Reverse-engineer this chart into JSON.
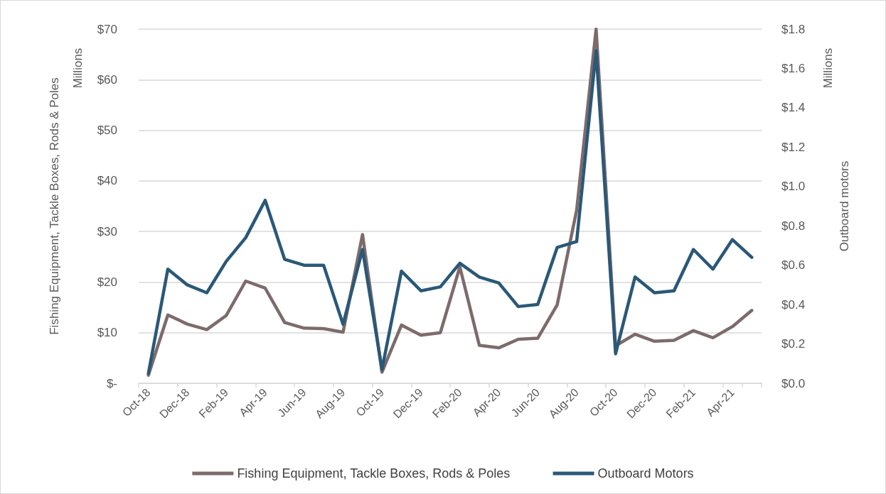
{
  "chart_data": {
    "type": "line",
    "ylabel": "Fishing Equipment, Tackle Boxes, Rods & Poles",
    "y2label": "Outboard motors",
    "annotations": [
      "Millions",
      "Millions"
    ],
    "categories": [
      "Oct-18",
      null,
      "Dec-18",
      null,
      "Feb-19",
      null,
      "Apr-19",
      null,
      "Jun-19",
      null,
      "Aug-19",
      null,
      "Oct-19",
      null,
      "Dec-19",
      null,
      "Feb-20",
      null,
      "Apr-20",
      null,
      "Jun-20",
      null,
      "Aug-20",
      null,
      "Oct-20",
      null,
      "Dec-20",
      null,
      "Feb-21",
      null,
      "Apr-21",
      null
    ],
    "series": [
      {
        "name": "Fishing Equipment, Tackle Boxes, Rods & Poles",
        "color": "#7d6b6b",
        "values": [
          1.6,
          13.5,
          11.7,
          10.6,
          13.4,
          20.2,
          18.8,
          12.0,
          10.9,
          10.8,
          10.1,
          29.4,
          2.2,
          11.5,
          9.5,
          10.0,
          23.0,
          7.5,
          7.0,
          8.7,
          8.9,
          15.5,
          34.2,
          70.0,
          7.4,
          9.7,
          8.3,
          8.5,
          10.4,
          9.0,
          11.2,
          14.4
        ]
      },
      {
        "name": "Outboard Motors",
        "color": "#2a5878",
        "axis": "y2",
        "values": [
          0.05,
          0.58,
          0.5,
          0.46,
          0.62,
          0.74,
          0.93,
          0.63,
          0.6,
          0.6,
          0.3,
          0.68,
          0.07,
          0.57,
          0.47,
          0.49,
          0.61,
          0.54,
          0.51,
          0.39,
          0.4,
          0.69,
          0.72,
          1.69,
          0.15,
          0.54,
          0.46,
          0.47,
          0.68,
          0.58,
          0.73,
          0.64
        ]
      }
    ],
    "ylim": [
      0,
      70
    ],
    "yticks": [
      {
        "value": 0,
        "label": "$-"
      },
      {
        "value": 10,
        "label": "$10"
      },
      {
        "value": 20,
        "label": "$20"
      },
      {
        "value": 30,
        "label": "$30"
      },
      {
        "value": 40,
        "label": "$40"
      },
      {
        "value": 50,
        "label": "$50"
      },
      {
        "value": 60,
        "label": "$60"
      },
      {
        "value": 70,
        "label": "$70"
      }
    ],
    "y2lim": [
      0,
      1.8
    ],
    "y2ticks": [
      {
        "value": 0,
        "label": "$0.0"
      },
      {
        "value": 0.2,
        "label": "$0.2"
      },
      {
        "value": 0.4,
        "label": "$0.4"
      },
      {
        "value": 0.6,
        "label": "$0.6"
      },
      {
        "value": 0.8,
        "label": "$0.8"
      },
      {
        "value": 1.0,
        "label": "$1.0"
      },
      {
        "value": 1.2,
        "label": "$1.2"
      },
      {
        "value": 1.4,
        "label": "$1.4"
      },
      {
        "value": 1.6,
        "label": "$1.6"
      },
      {
        "value": 1.8,
        "label": "$1.8"
      }
    ],
    "grid": "y",
    "legend": "bottom",
    "marker": "none",
    "line_style": "solid"
  }
}
